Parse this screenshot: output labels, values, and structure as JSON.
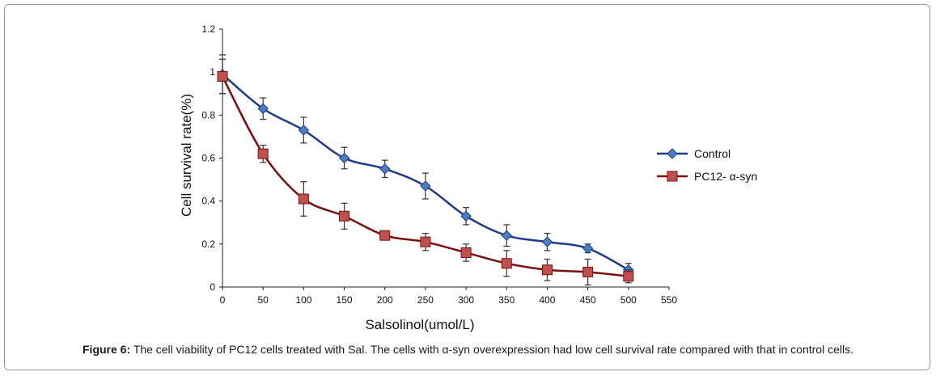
{
  "figure": {
    "caption_label": "Figure 6:",
    "caption_text": " The cell viability of PC12 cells treated with Sal. The cells with α-syn overexpression had low cell survival rate compared with that in control cells."
  },
  "colors": {
    "control_line": "#1f3a8a",
    "control_marker": "#4a7fc1",
    "pc12_line": "#7a1010",
    "pc12_marker": "#c0504d",
    "axis": "#222222",
    "errorbar": "#333333"
  },
  "chart_data": {
    "type": "line",
    "title": "",
    "xlabel": "Salsolinol(umol/L)",
    "ylabel": "Cell survival rate(%)",
    "xlim": [
      0,
      550
    ],
    "ylim": [
      0,
      1.2
    ],
    "xticks": [
      "0",
      "50",
      "100",
      "150",
      "200",
      "250",
      "300",
      "350",
      "400",
      "450",
      "500",
      "550"
    ],
    "yticks": [
      "0",
      "0.2",
      "0.4",
      "0.6",
      "0.8",
      "1",
      "1.2"
    ],
    "x": [
      0,
      50,
      100,
      150,
      200,
      250,
      300,
      350,
      400,
      450,
      500
    ],
    "legend_position": "right",
    "grid": false,
    "series": [
      {
        "name": "Control",
        "marker": "diamond",
        "values": [
          0.99,
          0.83,
          0.73,
          0.6,
          0.55,
          0.47,
          0.33,
          0.24,
          0.21,
          0.18,
          0.08
        ],
        "errors": [
          0.09,
          0.05,
          0.06,
          0.05,
          0.04,
          0.06,
          0.04,
          0.05,
          0.04,
          0.02,
          0.03
        ]
      },
      {
        "name": "PC12- α-syn",
        "marker": "square",
        "values": [
          0.98,
          0.62,
          0.41,
          0.33,
          0.24,
          0.21,
          0.16,
          0.11,
          0.08,
          0.07,
          0.05
        ],
        "errors": [
          0.08,
          0.04,
          0.08,
          0.06,
          0.02,
          0.04,
          0.04,
          0.06,
          0.05,
          0.06,
          0.03
        ]
      }
    ]
  }
}
